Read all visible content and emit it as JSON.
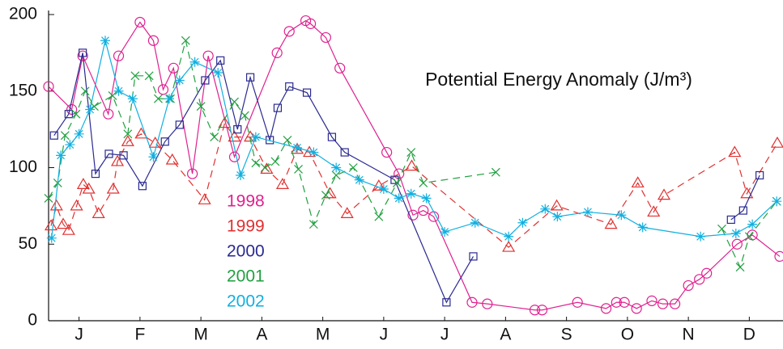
{
  "chart_data": {
    "type": "line",
    "annotation": "Potential Energy Anomaly (J/m³)",
    "xlim": [
      0,
      12
    ],
    "xticks": [
      {
        "value": 0.5,
        "label": "J"
      },
      {
        "value": 1.5,
        "label": "F"
      },
      {
        "value": 2.5,
        "label": "M"
      },
      {
        "value": 3.5,
        "label": "A"
      },
      {
        "value": 4.5,
        "label": "M"
      },
      {
        "value": 5.5,
        "label": "J"
      },
      {
        "value": 6.5,
        "label": "J"
      },
      {
        "value": 7.5,
        "label": "A"
      },
      {
        "value": 8.5,
        "label": "S"
      },
      {
        "value": 9.5,
        "label": "O"
      },
      {
        "value": 10.5,
        "label": "N"
      },
      {
        "value": 11.5,
        "label": "D"
      }
    ],
    "ylim": [
      0,
      200
    ],
    "yticks": [
      0,
      50,
      100,
      150,
      200
    ],
    "series": [
      {
        "name": "1998",
        "color": "#e0208f",
        "marker": "circle",
        "dashed": false,
        "x": [
          0,
          0.38,
          0.56,
          0.98,
          1.15,
          1.5,
          1.72,
          1.88,
          2.05,
          2.36,
          2.62,
          3.05,
          3.75,
          3.95,
          4.22,
          4.3,
          4.55,
          4.78,
          5.55,
          5.75,
          5.98,
          6.15,
          6.32,
          6.95,
          7.2,
          7.98,
          8.1,
          8.68,
          9.15,
          9.32,
          9.45,
          9.65,
          9.9,
          10.08,
          10.28,
          10.5,
          10.68,
          10.8,
          11.3,
          11.55,
          12
        ],
        "values": [
          153,
          138,
          173,
          135,
          173,
          195,
          183,
          151,
          165,
          96,
          173,
          107,
          175,
          189,
          196,
          194,
          185,
          165,
          110,
          96,
          69,
          72,
          68,
          12,
          11,
          7,
          7,
          12,
          8,
          12,
          12,
          8,
          13,
          11,
          11,
          23,
          27,
          31,
          50,
          56,
          42
        ]
      },
      {
        "name": "1999",
        "color": "#e03030",
        "marker": "triangle",
        "dashed": true,
        "x": [
          0.04,
          0.13,
          0.24,
          0.33,
          0.46,
          0.57,
          0.66,
          0.82,
          1.06,
          1.13,
          1.3,
          1.52,
          1.75,
          2.03,
          2.56,
          2.89,
          3.05,
          3.31,
          3.58,
          3.84,
          4.08,
          4.28,
          4.62,
          4.9,
          5.42,
          5.96,
          7.55,
          8.34,
          9.23,
          9.67,
          9.93,
          10.1,
          11.26,
          11.46,
          11.96
        ],
        "values": [
          62,
          75,
          63,
          59,
          75,
          89,
          86,
          70,
          86,
          104,
          117,
          122,
          116,
          105,
          79,
          129,
          120,
          120,
          99,
          89,
          112,
          110,
          83,
          70,
          88,
          101,
          48,
          75,
          63,
          90,
          71,
          82,
          110,
          83,
          116
        ]
      },
      {
        "name": "2000",
        "color": "#2a2a90",
        "marker": "square",
        "dashed": false,
        "x": [
          0.09,
          0.33,
          0.56,
          0.77,
          0.99,
          1.23,
          1.54,
          1.91,
          2.15,
          2.57,
          2.82,
          3.1,
          3.31,
          3.63,
          3.76,
          3.95,
          4.24,
          4.65,
          4.86,
          5.68,
          6.53,
          6.97,
          null,
          11.2,
          11.4,
          11.67
        ],
        "values": [
          121,
          135,
          175,
          96,
          109,
          108,
          88,
          117,
          128,
          157,
          170,
          125,
          159,
          118,
          139,
          153,
          149,
          120,
          110,
          92,
          12,
          42,
          null,
          66,
          72,
          95
        ]
      },
      {
        "name": "2001",
        "color": "#20a040",
        "marker": "x",
        "dashed": true,
        "x": [
          0,
          0.15,
          0.27,
          0.45,
          0.6,
          0.75,
          1.05,
          1.3,
          1.42,
          1.65,
          1.8,
          2.0,
          2.25,
          2.5,
          2.72,
          3.05,
          3.22,
          3.4,
          3.55,
          3.72,
          3.92,
          4.1,
          4.35,
          4.55,
          4.72,
          5.0,
          5.42,
          5.72,
          5.95,
          6.15,
          7.34,
          null,
          11.05,
          11.35,
          11.5,
          11.95
        ],
        "values": [
          80,
          90,
          121,
          135,
          150,
          140,
          147,
          122,
          160,
          160,
          145,
          145,
          183,
          140,
          120,
          143,
          134,
          103,
          100,
          104,
          118,
          99,
          63,
          82,
          95,
          100,
          68,
          90,
          110,
          90,
          97,
          null,
          60,
          35,
          55,
          78
        ]
      },
      {
        "name": "2002",
        "color": "#10b0e0",
        "marker": "asterisk",
        "dashed": false,
        "x": [
          0.05,
          0.2,
          0.35,
          0.5,
          0.68,
          0.93,
          1.15,
          1.38,
          1.72,
          1.98,
          2.15,
          2.4,
          2.78,
          3.15,
          3.4,
          4.08,
          4.35,
          4.72,
          5.1,
          5.5,
          5.75,
          5.95,
          6.2,
          6.5,
          7.0,
          7.55,
          7.78,
          8.15,
          8.35,
          8.85,
          9.4,
          9.75,
          10.7,
          11.28,
          11.55,
          11.95
        ],
        "values": [
          54,
          108,
          115,
          122,
          138,
          183,
          150,
          145,
          107,
          145,
          157,
          169,
          162,
          95,
          120,
          113,
          110,
          100,
          92,
          86,
          80,
          83,
          80,
          58,
          64,
          55,
          64,
          73,
          68,
          71,
          69,
          61,
          55,
          57,
          63,
          78
        ]
      }
    ]
  }
}
